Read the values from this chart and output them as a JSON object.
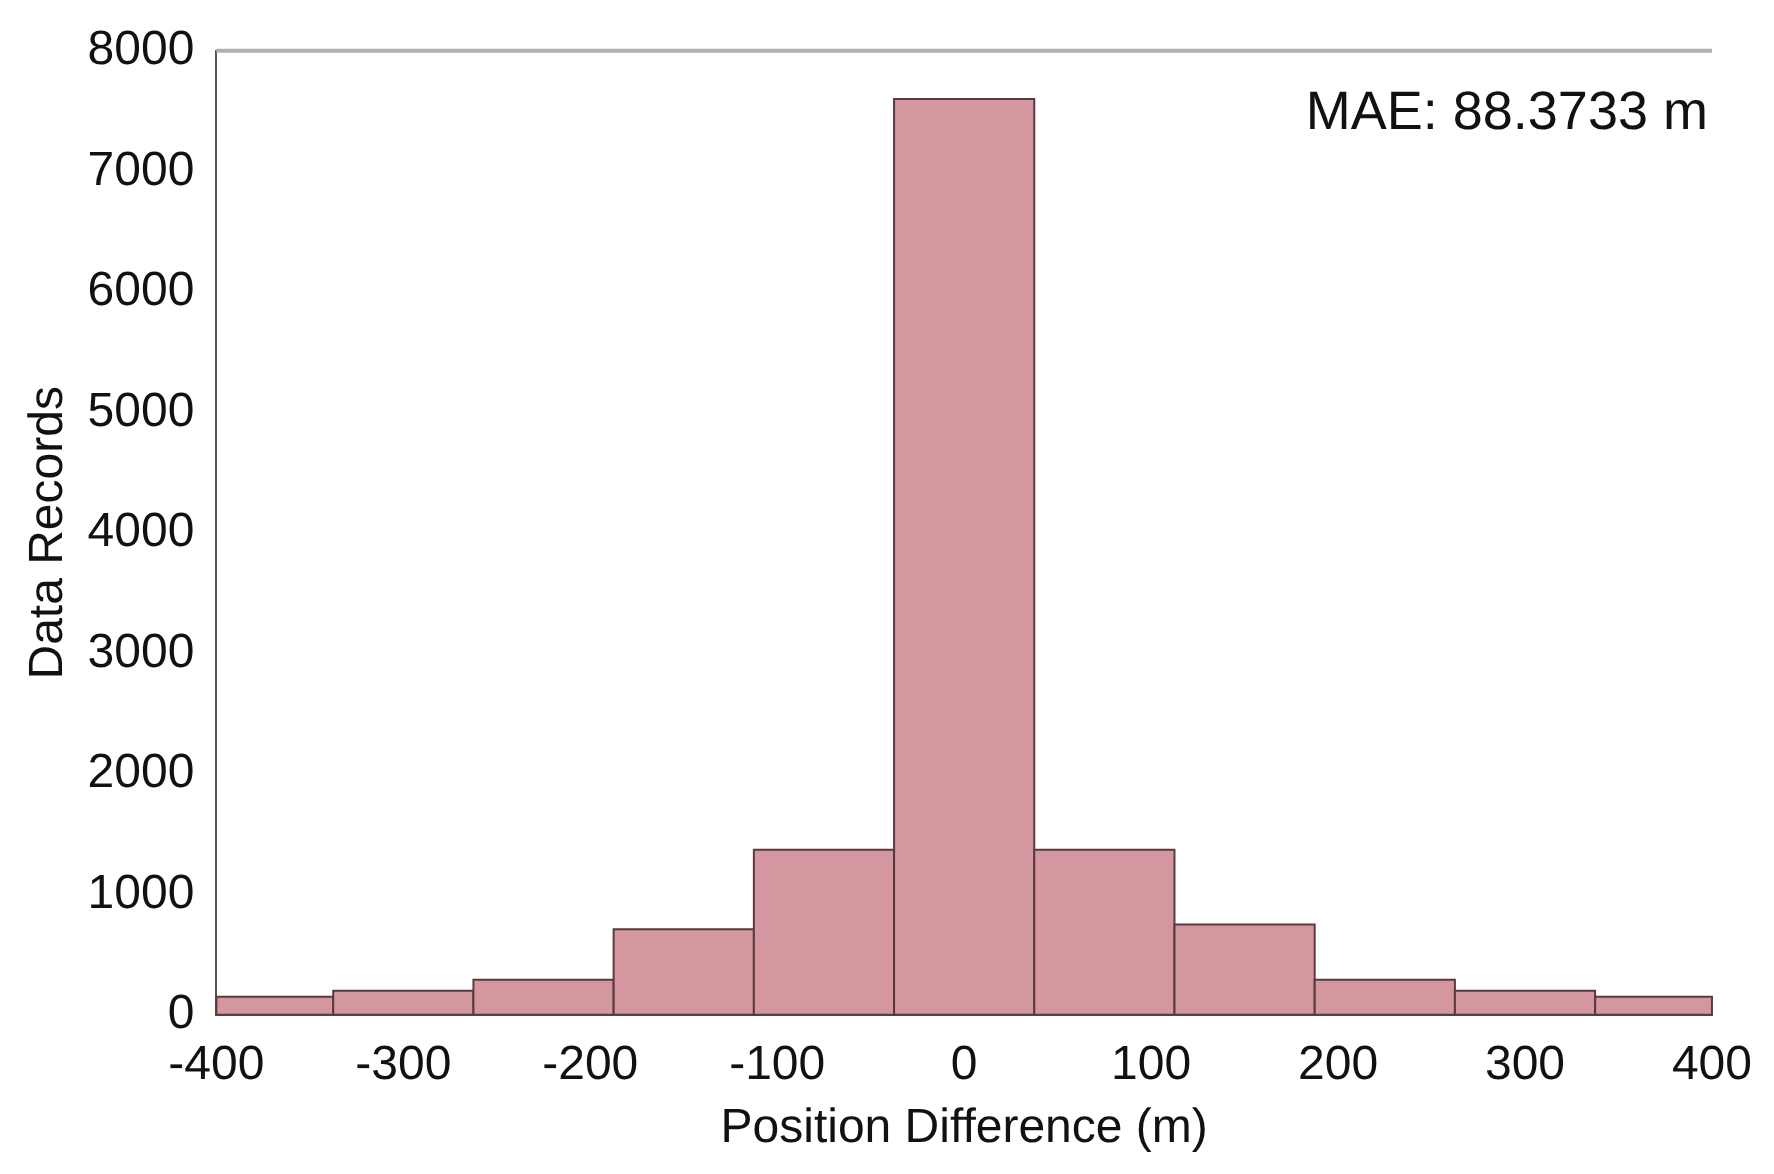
{
  "chart_data": {
    "type": "histogram",
    "xlabel": "Position Difference (m)",
    "ylabel": "Data Records",
    "bins": [
      -400,
      -337.5,
      -262.5,
      -187.5,
      -112.5,
      -37.5,
      37.5,
      112.5,
      187.5,
      262.5,
      337.5,
      400
    ],
    "values": [
      150,
      200,
      290,
      710,
      1370,
      7600,
      1370,
      750,
      290,
      200,
      150
    ],
    "color": "#d4979f",
    "xlim": [
      -400,
      400
    ],
    "xticks": [
      -400,
      -300,
      -200,
      -100,
      0,
      100,
      200,
      300,
      400
    ],
    "ylim": [
      0,
      8000
    ],
    "yticks": [
      0,
      1000,
      2000,
      3000,
      4000,
      5000,
      6000,
      7000,
      8000
    ],
    "annotations": [
      "MAE: 88.3733 m"
    ],
    "grid": false,
    "legend": false
  }
}
